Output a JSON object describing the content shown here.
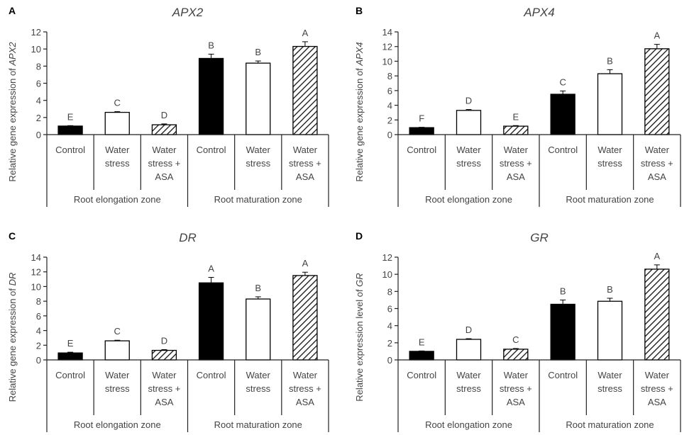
{
  "colors": {
    "axis": "#222222",
    "text": "#444444",
    "control_fill": "#000000",
    "water_stress_fill": "#ffffff",
    "asa_hatch": "#111111"
  },
  "chart_data": [
    {
      "type": "bar",
      "panel_label": "A",
      "title": "APX2",
      "ylabel_prefix": "Relative gene expression of ",
      "ylabel_gene": "APX2",
      "ylim": [
        0,
        12
      ],
      "yticks": [
        "0",
        "2",
        "4",
        "6",
        "8",
        "10",
        "12"
      ],
      "zones": [
        "Root elongation zone",
        "Root maturation zone"
      ],
      "categories": [
        [
          "Control"
        ],
        [
          "Water",
          "stress"
        ],
        [
          "Water",
          "stress +",
          "ASA"
        ],
        [
          "Control"
        ],
        [
          "Water",
          "stress"
        ],
        [
          "Water",
          "stress +",
          "ASA"
        ]
      ],
      "fills": [
        "solid",
        "open",
        "hatched",
        "solid",
        "open",
        "hatched"
      ],
      "values": [
        1.0,
        2.6,
        1.15,
        8.9,
        8.35,
        10.3
      ],
      "errors": [
        0.05,
        0.08,
        0.1,
        0.5,
        0.25,
        0.55
      ],
      "letters": [
        "E",
        "C",
        "D",
        "B",
        "B",
        "A"
      ]
    },
    {
      "type": "bar",
      "panel_label": "B",
      "title": "APX4",
      "ylabel_prefix": "Relative gene expression of ",
      "ylabel_gene": "APX4",
      "ylim": [
        0,
        14
      ],
      "yticks": [
        "0",
        "2",
        "4",
        "6",
        "8",
        "10",
        "12",
        "14"
      ],
      "zones": [
        "Root elongation zone",
        "Root maturation zone"
      ],
      "categories": [
        [
          "Control"
        ],
        [
          "Water",
          "stress"
        ],
        [
          "Water",
          "stress +",
          "ASA"
        ],
        [
          "Control"
        ],
        [
          "Water",
          "stress"
        ],
        [
          "Water",
          "stress +",
          "ASA"
        ]
      ],
      "fills": [
        "solid",
        "open",
        "hatched",
        "solid",
        "open",
        "hatched"
      ],
      "values": [
        0.95,
        3.3,
        1.15,
        5.5,
        8.3,
        11.7
      ],
      "errors": [
        0.05,
        0.12,
        0.08,
        0.45,
        0.55,
        0.6
      ],
      "letters": [
        "F",
        "D",
        "E",
        "C",
        "B",
        "A"
      ]
    },
    {
      "type": "bar",
      "panel_label": "C",
      "title": "DR",
      "ylabel_prefix": "Relative gene expression of ",
      "ylabel_gene": "DR",
      "ylim": [
        0,
        14
      ],
      "yticks": [
        "0",
        "2",
        "4",
        "6",
        "8",
        "10",
        "12",
        "14"
      ],
      "zones": [
        "Root elongation zone",
        "Root maturation zone"
      ],
      "categories": [
        [
          "Control"
        ],
        [
          "Water",
          "stress"
        ],
        [
          "Water",
          "stress +",
          "ASA"
        ],
        [
          "Control"
        ],
        [
          "Water",
          "stress"
        ],
        [
          "Water",
          "stress +",
          "ASA"
        ]
      ],
      "fills": [
        "solid",
        "open",
        "hatched",
        "solid",
        "open",
        "hatched"
      ],
      "values": [
        0.95,
        2.6,
        1.3,
        10.5,
        8.3,
        11.5
      ],
      "errors": [
        0.1,
        0.08,
        0.1,
        0.75,
        0.3,
        0.45
      ],
      "letters": [
        "E",
        "C",
        "D",
        "A",
        "B",
        "A"
      ]
    },
    {
      "type": "bar",
      "panel_label": "D",
      "title": "GR",
      "ylabel_prefix": "Relative expression level of ",
      "ylabel_gene": "GR",
      "ylim": [
        0,
        12
      ],
      "yticks": [
        "0",
        "2",
        "4",
        "6",
        "8",
        "10",
        "12"
      ],
      "zones": [
        "Root elongation zone",
        "Root maturation zone"
      ],
      "categories": [
        [
          "Control"
        ],
        [
          "Water",
          "stress"
        ],
        [
          "Water",
          "stress +",
          "ASA"
        ],
        [
          "Control"
        ],
        [
          "Water",
          "stress"
        ],
        [
          "Water",
          "stress +",
          "ASA"
        ]
      ],
      "fills": [
        "solid",
        "open",
        "hatched",
        "solid",
        "open",
        "hatched"
      ],
      "values": [
        1.0,
        2.4,
        1.25,
        6.5,
        6.85,
        10.6
      ],
      "errors": [
        0.05,
        0.08,
        0.08,
        0.5,
        0.35,
        0.5
      ],
      "letters": [
        "E",
        "D",
        "C",
        "B",
        "B",
        "A"
      ]
    }
  ]
}
